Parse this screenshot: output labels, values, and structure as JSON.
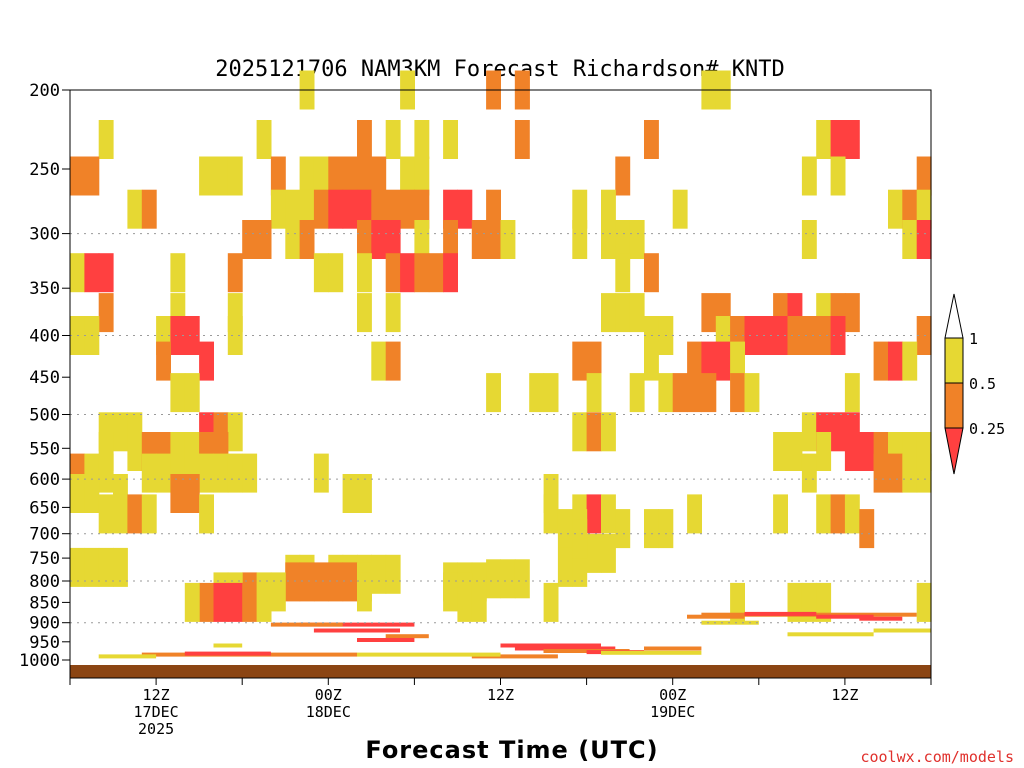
{
  "chart_data": {
    "type": "heatmap",
    "title": "2025121706 NAM3KM Forecast Richardson# KNTD",
    "xlabel": "Forecast Time (UTC)",
    "ylabel": "",
    "credit": "coolwx.com/models",
    "y_scale": "pressure (hPa, decreasing upward)",
    "ylim": [
      1000,
      200
    ],
    "y_ticks": [
      200,
      250,
      300,
      350,
      400,
      450,
      500,
      550,
      600,
      650,
      700,
      750,
      800,
      850,
      900,
      950,
      1000
    ],
    "y_gridlines": [
      300,
      400,
      500,
      600,
      700,
      800,
      900
    ],
    "xlim_hours": [
      0,
      60
    ],
    "x_ticks": [
      {
        "hour": 6,
        "lines": [
          "12Z",
          "17DEC",
          "2025"
        ]
      },
      {
        "hour": 18,
        "lines": [
          "00Z",
          "18DEC"
        ]
      },
      {
        "hour": 30,
        "lines": [
          "12Z"
        ]
      },
      {
        "hour": 42,
        "lines": [
          "00Z",
          "19DEC"
        ]
      },
      {
        "hour": 54,
        "lines": [
          "12Z"
        ]
      }
    ],
    "colorbar": {
      "levels": [
        "1",
        "0.5",
        "0.25"
      ],
      "colors": {
        "yellow": "#e6d833",
        "orange": "#f08228",
        "red": "#ff4040"
      }
    },
    "legend": "right",
    "ground_color": "#8b4513",
    "cells": [
      [
        16.5,
        200,
        "Y"
      ],
      [
        23.5,
        200,
        "Y"
      ],
      [
        29.5,
        200,
        "O"
      ],
      [
        31.5,
        200,
        "O"
      ],
      [
        31.5,
        200,
        "O"
      ],
      [
        44.5,
        200,
        "Y"
      ],
      [
        45.5,
        200,
        "Y"
      ],
      [
        2.5,
        230,
        "Y"
      ],
      [
        13.5,
        230,
        "Y"
      ],
      [
        20.5,
        230,
        "O"
      ],
      [
        22.5,
        230,
        "Y"
      ],
      [
        24.5,
        230,
        "Y"
      ],
      [
        26.5,
        230,
        "Y"
      ],
      [
        31.5,
        230,
        "O"
      ],
      [
        40.5,
        230,
        "O"
      ],
      [
        52.5,
        230,
        "Y"
      ],
      [
        53.5,
        230,
        "R"
      ],
      [
        54.5,
        230,
        "R"
      ],
      [
        0.5,
        255,
        "O"
      ],
      [
        1.5,
        255,
        "O"
      ],
      [
        9.5,
        255,
        "Y"
      ],
      [
        10.5,
        255,
        "Y"
      ],
      [
        11.5,
        255,
        "Y"
      ],
      [
        14.5,
        255,
        "O"
      ],
      [
        16.5,
        255,
        "Y"
      ],
      [
        17.5,
        255,
        "Y"
      ],
      [
        18.5,
        255,
        "O"
      ],
      [
        19.5,
        255,
        "O"
      ],
      [
        20.5,
        255,
        "O"
      ],
      [
        21.5,
        255,
        "O"
      ],
      [
        23.5,
        255,
        "Y"
      ],
      [
        24.5,
        255,
        "Y"
      ],
      [
        38.5,
        255,
        "O"
      ],
      [
        51.5,
        255,
        "Y"
      ],
      [
        53.5,
        255,
        "Y"
      ],
      [
        59.5,
        255,
        "O"
      ],
      [
        4.5,
        280,
        "Y"
      ],
      [
        5.5,
        280,
        "O"
      ],
      [
        14.5,
        280,
        "Y"
      ],
      [
        15.5,
        280,
        "Y"
      ],
      [
        16.5,
        280,
        "Y"
      ],
      [
        17.5,
        280,
        "O"
      ],
      [
        18.5,
        280,
        "R"
      ],
      [
        19.5,
        280,
        "R"
      ],
      [
        20.5,
        280,
        "R"
      ],
      [
        21.5,
        280,
        "O"
      ],
      [
        22.5,
        280,
        "O"
      ],
      [
        23.5,
        280,
        "O"
      ],
      [
        24.5,
        280,
        "O"
      ],
      [
        26.5,
        280,
        "R"
      ],
      [
        27.5,
        280,
        "R"
      ],
      [
        29.5,
        280,
        "O"
      ],
      [
        35.5,
        280,
        "Y"
      ],
      [
        37.5,
        280,
        "Y"
      ],
      [
        42.5,
        280,
        "Y"
      ],
      [
        57.5,
        280,
        "Y"
      ],
      [
        58.5,
        280,
        "O"
      ],
      [
        59.5,
        280,
        "Y"
      ],
      [
        12.5,
        305,
        "O"
      ],
      [
        13.5,
        305,
        "O"
      ],
      [
        15.5,
        305,
        "Y"
      ],
      [
        16.5,
        305,
        "O"
      ],
      [
        20.5,
        305,
        "O"
      ],
      [
        21.5,
        305,
        "R"
      ],
      [
        22.5,
        305,
        "R"
      ],
      [
        24.5,
        305,
        "Y"
      ],
      [
        26.5,
        305,
        "O"
      ],
      [
        28.5,
        305,
        "O"
      ],
      [
        29.5,
        305,
        "O"
      ],
      [
        30.5,
        305,
        "Y"
      ],
      [
        35.5,
        305,
        "Y"
      ],
      [
        37.5,
        305,
        "Y"
      ],
      [
        38.5,
        305,
        "Y"
      ],
      [
        39.5,
        305,
        "Y"
      ],
      [
        51.5,
        305,
        "Y"
      ],
      [
        58.5,
        305,
        "Y"
      ],
      [
        59.5,
        305,
        "R"
      ],
      [
        0.5,
        335,
        "Y"
      ],
      [
        1.5,
        335,
        "R"
      ],
      [
        2.5,
        335,
        "R"
      ],
      [
        7.5,
        335,
        "Y"
      ],
      [
        11.5,
        335,
        "O"
      ],
      [
        17.5,
        335,
        "Y"
      ],
      [
        18.5,
        335,
        "Y"
      ],
      [
        20.5,
        335,
        "Y"
      ],
      [
        22.5,
        335,
        "O"
      ],
      [
        23.5,
        335,
        "R"
      ],
      [
        24.5,
        335,
        "O"
      ],
      [
        25.5,
        335,
        "O"
      ],
      [
        26.5,
        335,
        "R"
      ],
      [
        38.5,
        335,
        "Y"
      ],
      [
        40.5,
        335,
        "O"
      ],
      [
        2.5,
        375,
        "O"
      ],
      [
        7.5,
        375,
        "Y"
      ],
      [
        11.5,
        375,
        "Y"
      ],
      [
        20.5,
        375,
        "Y"
      ],
      [
        22.5,
        375,
        "Y"
      ],
      [
        37.5,
        375,
        "Y"
      ],
      [
        38.5,
        375,
        "Y"
      ],
      [
        39.5,
        375,
        "Y"
      ],
      [
        44.5,
        375,
        "O"
      ],
      [
        45.5,
        375,
        "O"
      ],
      [
        49.5,
        375,
        "O"
      ],
      [
        50.5,
        375,
        "R"
      ],
      [
        52.5,
        375,
        "Y"
      ],
      [
        53.5,
        375,
        "O"
      ],
      [
        54.5,
        375,
        "O"
      ],
      [
        0.5,
        400,
        "Y"
      ],
      [
        1.5,
        400,
        "Y"
      ],
      [
        6.5,
        400,
        "Y"
      ],
      [
        7.5,
        400,
        "R"
      ],
      [
        8.5,
        400,
        "R"
      ],
      [
        11.5,
        400,
        "Y"
      ],
      [
        40.5,
        400,
        "Y"
      ],
      [
        41.5,
        400,
        "Y"
      ],
      [
        45.5,
        400,
        "Y"
      ],
      [
        46.5,
        400,
        "O"
      ],
      [
        47.5,
        400,
        "R"
      ],
      [
        48.5,
        400,
        "R"
      ],
      [
        49.5,
        400,
        "R"
      ],
      [
        50.5,
        400,
        "O"
      ],
      [
        51.5,
        400,
        "O"
      ],
      [
        52.5,
        400,
        "O"
      ],
      [
        53.5,
        400,
        "R"
      ],
      [
        59.5,
        400,
        "O"
      ],
      [
        6.5,
        430,
        "O"
      ],
      [
        9.5,
        430,
        "R"
      ],
      [
        21.5,
        430,
        "Y"
      ],
      [
        22.5,
        430,
        "O"
      ],
      [
        35.5,
        430,
        "O"
      ],
      [
        36.5,
        430,
        "O"
      ],
      [
        40.5,
        430,
        "Y"
      ],
      [
        43.5,
        430,
        "O"
      ],
      [
        44.5,
        430,
        "R"
      ],
      [
        45.5,
        430,
        "R"
      ],
      [
        46.5,
        430,
        "Y"
      ],
      [
        56.5,
        430,
        "O"
      ],
      [
        57.5,
        430,
        "R"
      ],
      [
        58.5,
        430,
        "Y"
      ],
      [
        7.5,
        470,
        "Y"
      ],
      [
        8.5,
        470,
        "Y"
      ],
      [
        29.5,
        470,
        "Y"
      ],
      [
        32.5,
        470,
        "Y"
      ],
      [
        33.5,
        470,
        "Y"
      ],
      [
        36.5,
        470,
        "Y"
      ],
      [
        39.5,
        470,
        "Y"
      ],
      [
        41.5,
        470,
        "Y"
      ],
      [
        42.5,
        470,
        "O"
      ],
      [
        43.5,
        470,
        "O"
      ],
      [
        44.5,
        470,
        "O"
      ],
      [
        46.5,
        470,
        "O"
      ],
      [
        47.5,
        470,
        "Y"
      ],
      [
        54.5,
        470,
        "Y"
      ],
      [
        2.5,
        525,
        "Y"
      ],
      [
        3.5,
        525,
        "Y"
      ],
      [
        4.5,
        525,
        "Y"
      ],
      [
        9.5,
        525,
        "R"
      ],
      [
        10.5,
        525,
        "O"
      ],
      [
        11.5,
        525,
        "Y"
      ],
      [
        35.5,
        525,
        "Y"
      ],
      [
        36.5,
        525,
        "O"
      ],
      [
        37.5,
        525,
        "Y"
      ],
      [
        51.5,
        525,
        "Y"
      ],
      [
        52.5,
        525,
        "R"
      ],
      [
        53.5,
        525,
        "R"
      ],
      [
        54.5,
        525,
        "R"
      ],
      [
        2.5,
        555,
        "Y"
      ],
      [
        4.5,
        555,
        "Y"
      ],
      [
        5.5,
        555,
        "O"
      ],
      [
        6.5,
        555,
        "O"
      ],
      [
        7.5,
        555,
        "Y"
      ],
      [
        8.5,
        555,
        "Y"
      ],
      [
        9.5,
        555,
        "O"
      ],
      [
        10.5,
        555,
        "O"
      ],
      [
        49.5,
        555,
        "Y"
      ],
      [
        50.5,
        555,
        "Y"
      ],
      [
        52.5,
        555,
        "Y"
      ],
      [
        54.5,
        555,
        "R"
      ],
      [
        55.5,
        555,
        "R"
      ],
      [
        56.5,
        555,
        "O"
      ],
      [
        57.5,
        555,
        "Y"
      ],
      [
        58.5,
        555,
        "Y"
      ],
      [
        59.5,
        555,
        "Y"
      ],
      [
        0.5,
        590,
        "O"
      ],
      [
        1.5,
        590,
        "Y"
      ],
      [
        2.5,
        590,
        "Y"
      ],
      [
        5.5,
        590,
        "Y"
      ],
      [
        6.5,
        590,
        "Y"
      ],
      [
        7.5,
        590,
        "Y"
      ],
      [
        8.5,
        590,
        "Y"
      ],
      [
        9.5,
        590,
        "Y"
      ],
      [
        10.5,
        590,
        "Y"
      ],
      [
        11.5,
        590,
        "Y"
      ],
      [
        12.5,
        590,
        "Y"
      ],
      [
        17.5,
        590,
        "Y"
      ],
      [
        51.5,
        590,
        "Y"
      ],
      [
        56.5,
        590,
        "O"
      ],
      [
        57.5,
        590,
        "O"
      ],
      [
        58.5,
        590,
        "Y"
      ],
      [
        59.5,
        590,
        "Y"
      ],
      [
        0.5,
        625,
        "Y"
      ],
      [
        1.5,
        625,
        "Y"
      ],
      [
        3.5,
        625,
        "Y"
      ],
      [
        7.5,
        625,
        "O"
      ],
      [
        8.5,
        625,
        "O"
      ],
      [
        19.5,
        625,
        "Y"
      ],
      [
        20.5,
        625,
        "Y"
      ],
      [
        33.5,
        625,
        "Y"
      ],
      [
        2.5,
        662,
        "Y"
      ],
      [
        3.5,
        662,
        "Y"
      ],
      [
        4.5,
        662,
        "O"
      ],
      [
        5.5,
        662,
        "Y"
      ],
      [
        9.5,
        662,
        "Y"
      ],
      [
        33.5,
        662,
        "Y"
      ],
      [
        35.5,
        662,
        "Y"
      ],
      [
        36.5,
        662,
        "R"
      ],
      [
        37.5,
        662,
        "Y"
      ],
      [
        43.5,
        662,
        "Y"
      ],
      [
        49.5,
        662,
        "Y"
      ],
      [
        52.5,
        662,
        "Y"
      ],
      [
        53.5,
        662,
        "O"
      ],
      [
        54.5,
        662,
        "Y"
      ],
      [
        34.5,
        690,
        "Y"
      ],
      [
        35.5,
        690,
        "Y"
      ],
      [
        38.5,
        690,
        "Y"
      ],
      [
        40.5,
        690,
        "Y"
      ],
      [
        41.5,
        690,
        "Y"
      ],
      [
        55.5,
        690,
        "O"
      ],
      [
        0.5,
        770,
        "Y"
      ],
      [
        1.5,
        770,
        "Y"
      ],
      [
        2.5,
        770,
        "Y"
      ],
      [
        3.5,
        770,
        "Y"
      ],
      [
        34.5,
        770,
        "Y"
      ],
      [
        35.5,
        770,
        "Y"
      ],
      [
        36.5,
        740,
        "Y"
      ],
      [
        37.5,
        740,
        "Y"
      ],
      [
        35.5,
        710,
        "Y"
      ],
      [
        15.5,
        785,
        "Y"
      ],
      [
        16.5,
        785,
        "Y"
      ],
      [
        18.5,
        785,
        "Y"
      ],
      [
        19.5,
        785,
        "Y"
      ],
      [
        20.5,
        785,
        "Y"
      ],
      [
        21.5,
        785,
        "Y"
      ],
      [
        22.5,
        785,
        "Y"
      ],
      [
        29.5,
        795,
        "Y"
      ],
      [
        30.5,
        795,
        "Y"
      ],
      [
        31.5,
        795,
        "Y"
      ],
      [
        15.5,
        802,
        "O"
      ],
      [
        16.5,
        802,
        "O"
      ],
      [
        17.5,
        802,
        "O"
      ],
      [
        18.5,
        802,
        "O"
      ],
      [
        19.5,
        802,
        "O"
      ],
      [
        20.5,
        802,
        "Y"
      ],
      [
        26.5,
        802,
        "Y"
      ],
      [
        27.5,
        802,
        "Y"
      ],
      [
        28.5,
        802,
        "Y"
      ],
      [
        12.5,
        825,
        "O"
      ],
      [
        13.5,
        825,
        "Y"
      ],
      [
        14.5,
        825,
        "Y"
      ],
      [
        10.5,
        825,
        "Y"
      ],
      [
        11.5,
        825,
        "Y"
      ],
      [
        20.5,
        825,
        "Y"
      ],
      [
        26.5,
        825,
        "Y"
      ],
      [
        27.5,
        825,
        "Y"
      ],
      [
        9.5,
        850,
        "O"
      ],
      [
        10.5,
        850,
        "R"
      ],
      [
        11.5,
        850,
        "R"
      ],
      [
        12.5,
        850,
        "O"
      ],
      [
        13.5,
        850,
        "Y"
      ],
      [
        8.5,
        850,
        "Y"
      ],
      [
        27.5,
        850,
        "Y"
      ],
      [
        28.5,
        850,
        "Y"
      ],
      [
        33.5,
        850,
        "Y"
      ],
      [
        46.5,
        850,
        "Y"
      ],
      [
        50.5,
        850,
        "Y"
      ],
      [
        51.5,
        850,
        "Y"
      ],
      [
        52.5,
        850,
        "Y"
      ],
      [
        59.5,
        850,
        "Y"
      ]
    ]
  }
}
